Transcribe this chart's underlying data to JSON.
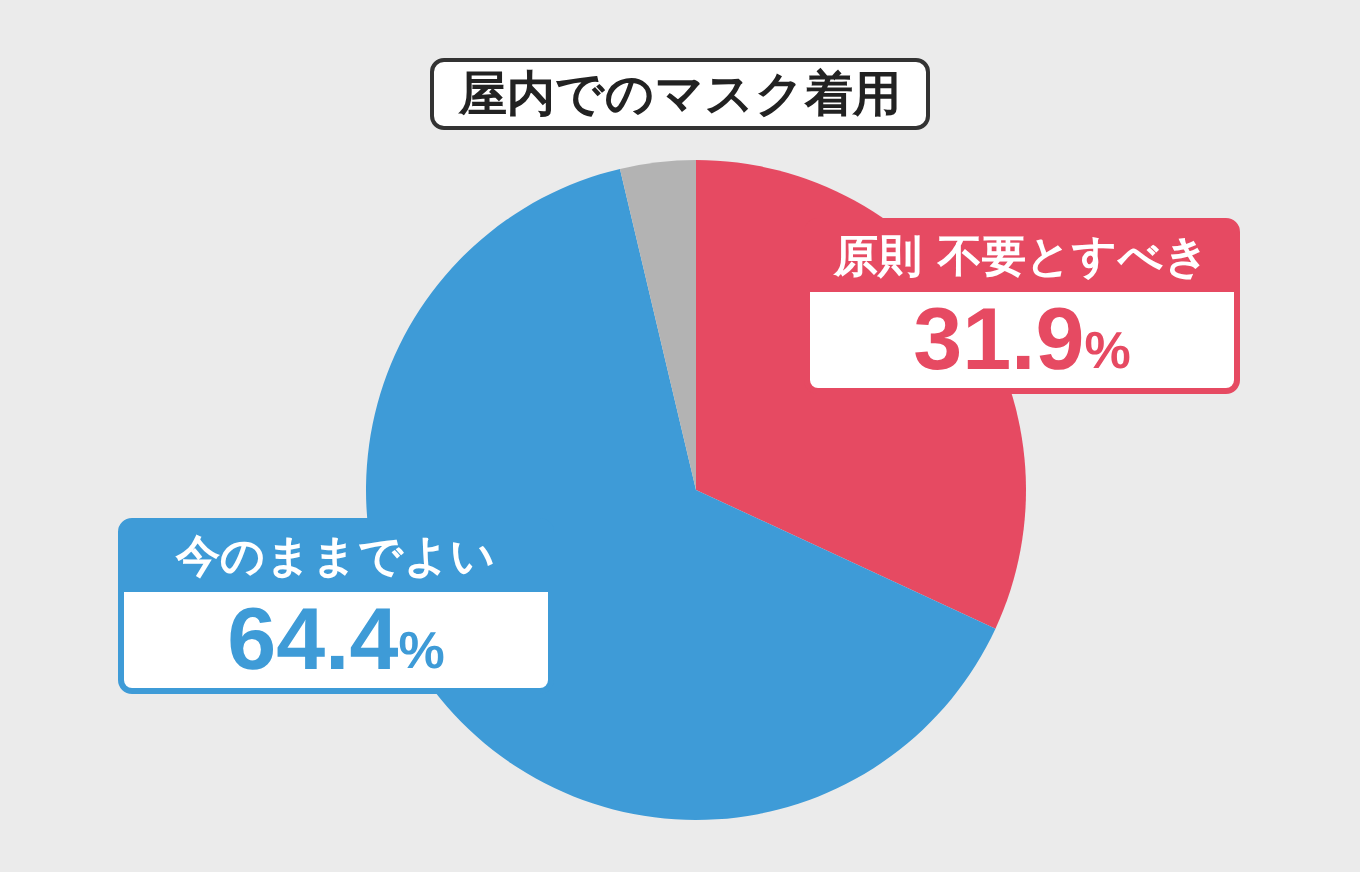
{
  "chart_data": {
    "type": "pie",
    "title": "屋内でのマスク着用",
    "categories": [
      "原則 不要とすべき",
      "今のままでよい",
      null
    ],
    "values": [
      31.9,
      64.4,
      3.7
    ],
    "colors": [
      "#e64a62",
      "#3e9bd7",
      "#b3b3b3"
    ],
    "value_labels": [
      "31.9%",
      "64.4%",
      null
    ]
  }
}
